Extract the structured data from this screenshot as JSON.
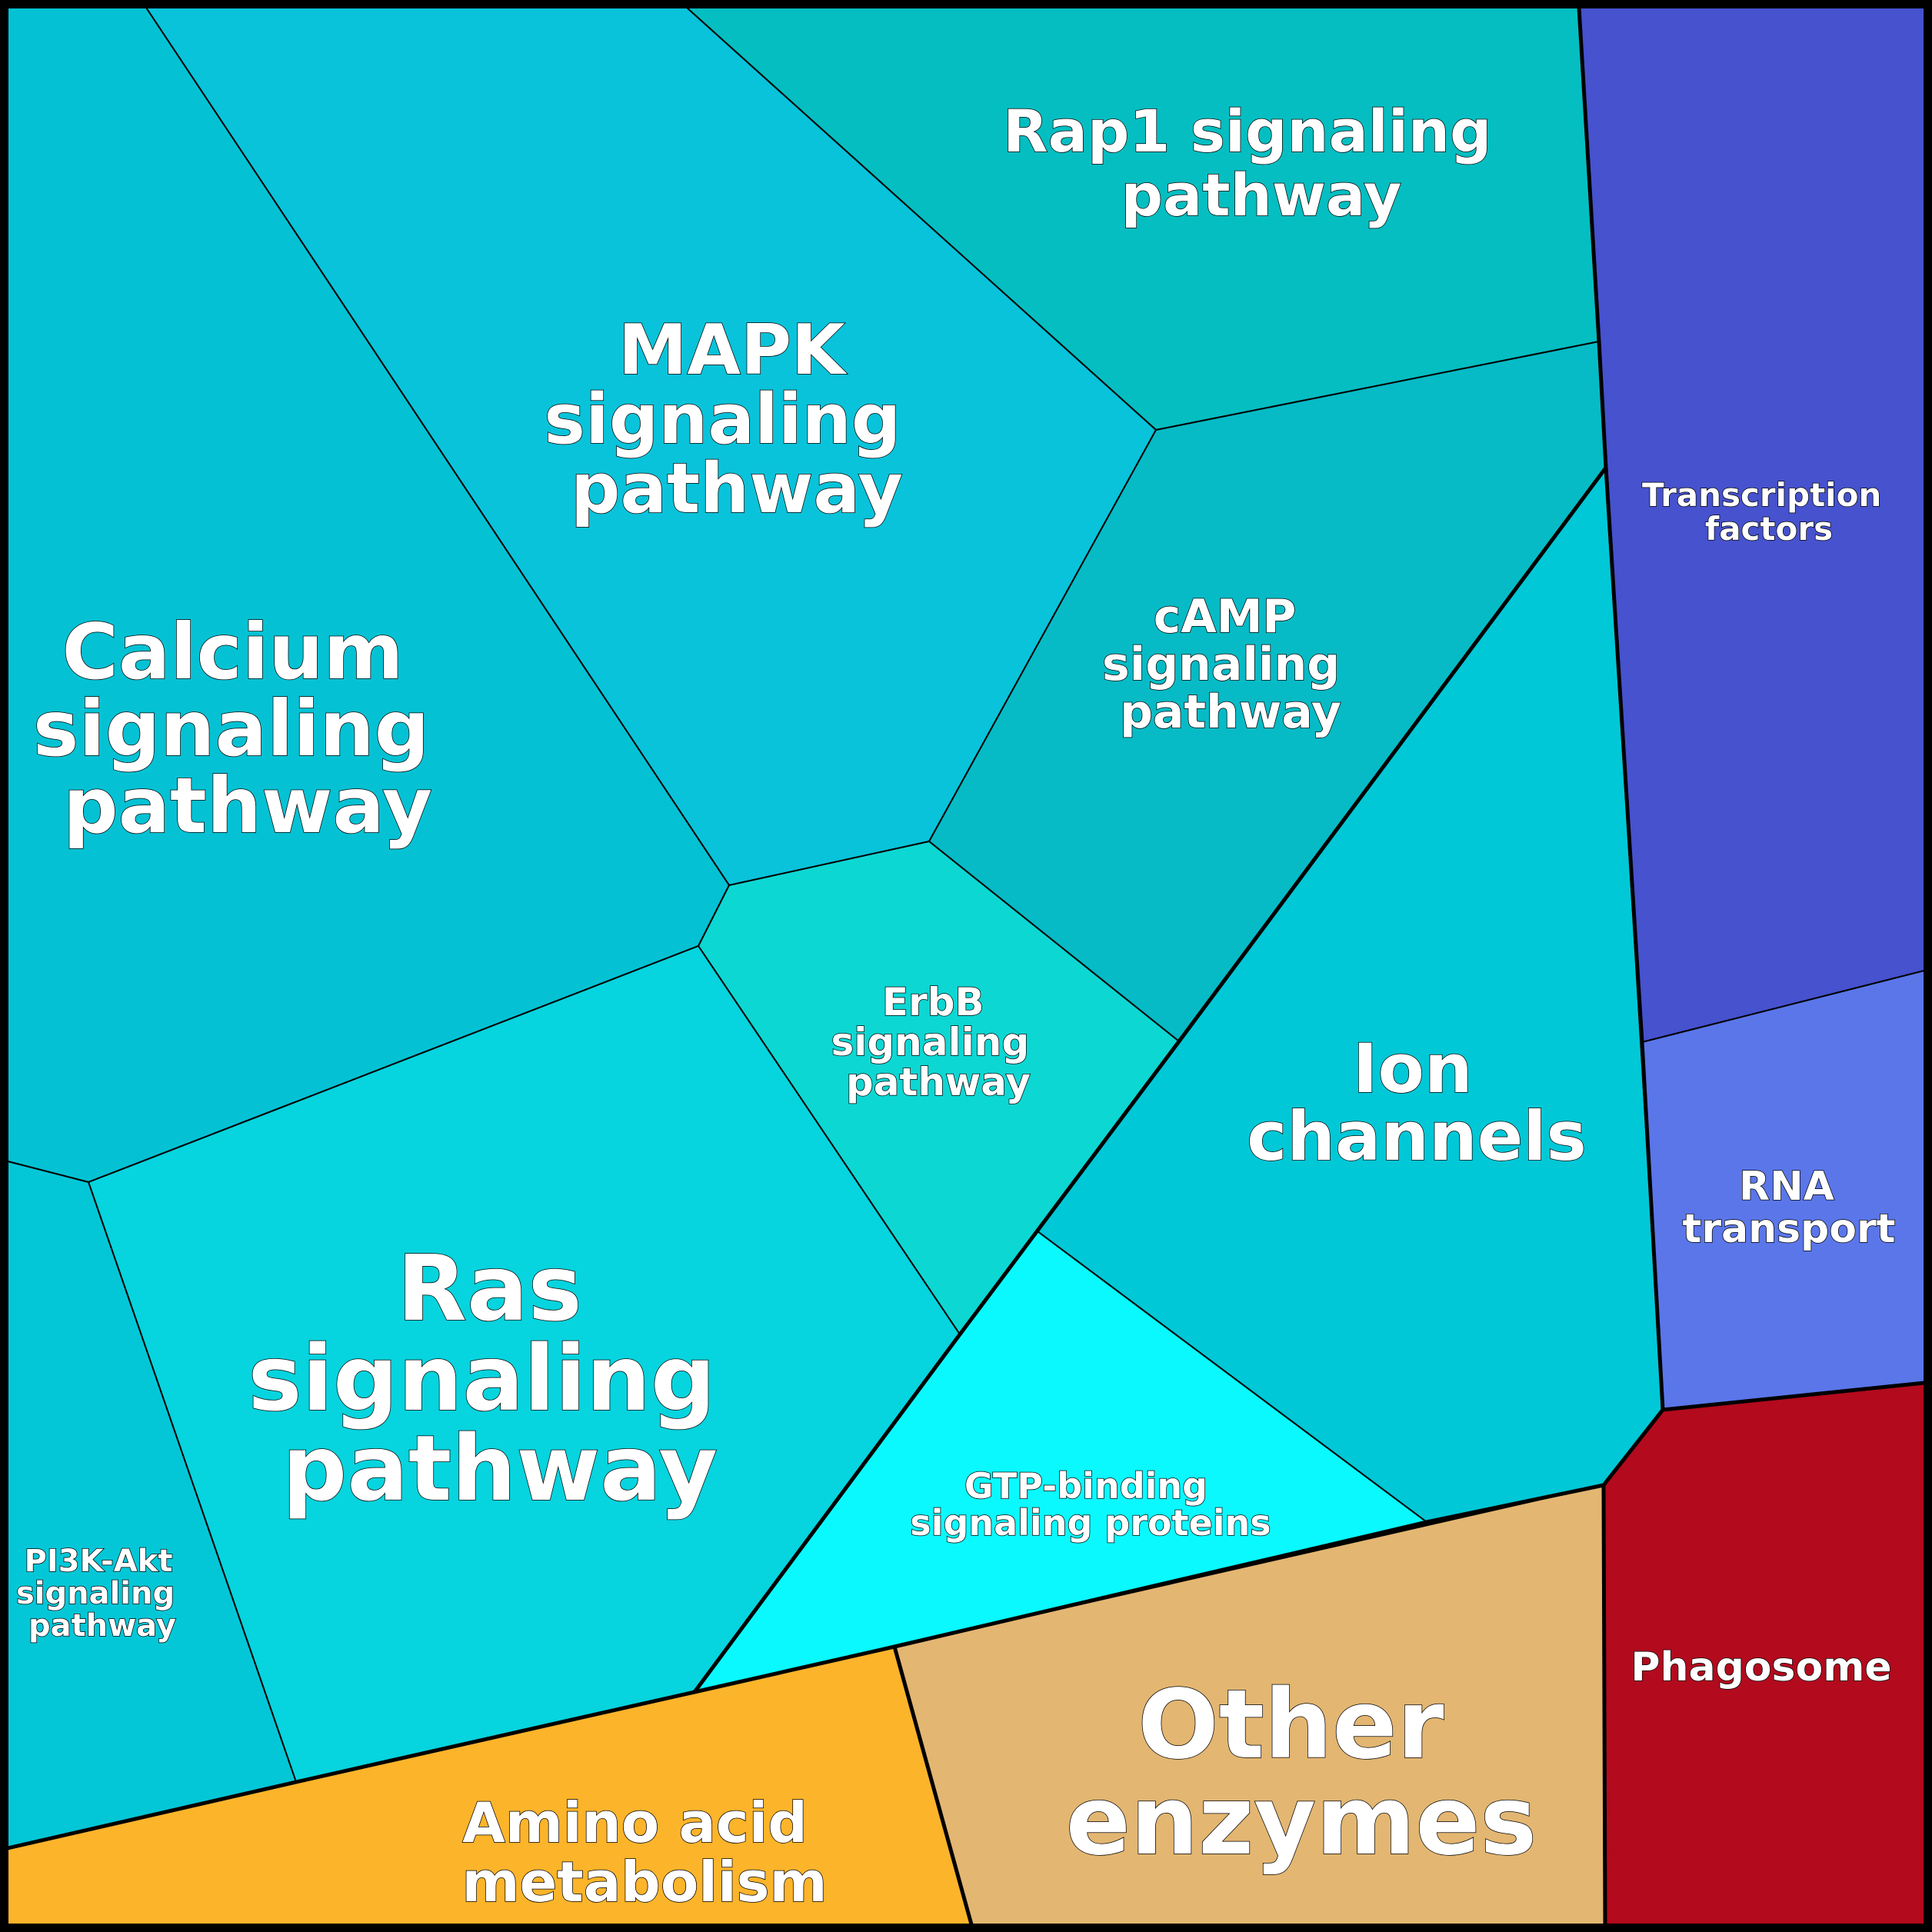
{
  "cells": [
    {
      "id": "rap1",
      "label": [
        "Rap1 signaling",
        "pathway"
      ],
      "color": "#05BEC1"
    },
    {
      "id": "mapk",
      "label": [
        "MAPK",
        "signaling",
        "pathway"
      ],
      "color": "#09C3DA"
    },
    {
      "id": "calcium",
      "label": [
        "Calcium",
        "signaling",
        "pathway"
      ],
      "color": "#04C2D4"
    },
    {
      "id": "camp",
      "label": [
        "cAMP",
        "signaling",
        "pathway"
      ],
      "color": "#06BBC6"
    },
    {
      "id": "erbb",
      "label": [
        "ErbB",
        "signaling",
        "pathway"
      ],
      "color": "#0DD7D3"
    },
    {
      "id": "ras",
      "label": [
        "Ras",
        "signaling",
        "pathway"
      ],
      "color": "#06D4DE"
    },
    {
      "id": "ion",
      "label": [
        "Ion",
        "channels"
      ],
      "color": "#00C8D7"
    },
    {
      "id": "pi3k",
      "label": [
        "PI3K-Akt",
        "signaling",
        "pathway"
      ],
      "color": "#03C7D7"
    },
    {
      "id": "gtp",
      "label": [
        "GTP-binding",
        "signaling proteins"
      ],
      "color": "#0AF9FF"
    },
    {
      "id": "transcription",
      "label": [
        "Transcription",
        "factors"
      ],
      "color": "#4652CE"
    },
    {
      "id": "rna",
      "label": [
        "RNA",
        "transport"
      ],
      "color": "#5A76E9"
    },
    {
      "id": "phagosome",
      "label": [
        "Phagosome"
      ],
      "color": "#B30A1D"
    },
    {
      "id": "other_enzymes",
      "label": [
        "Other",
        "enzymes"
      ],
      "color": "#E3B672"
    },
    {
      "id": "amino_acid",
      "label": [
        "Amino acid",
        "metabolism"
      ],
      "color": "#FCB42A"
    }
  ]
}
